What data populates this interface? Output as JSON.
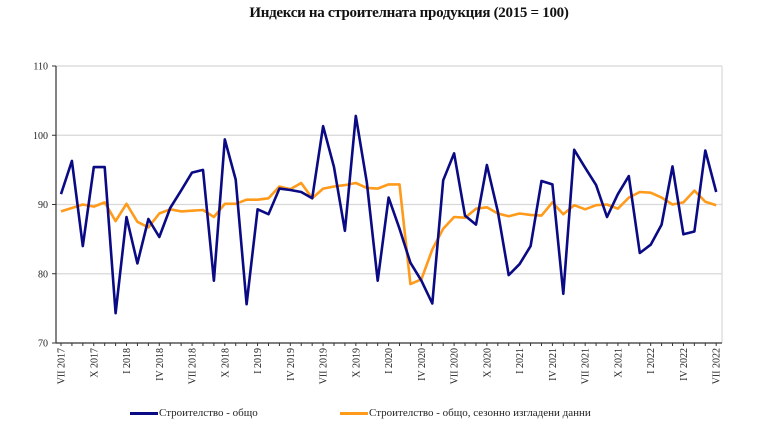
{
  "chart_data": {
    "type": "line",
    "title": "Индекси на строителната продукция (2015 = 100)",
    "xlabel": "",
    "ylabel": "",
    "ylim": [
      70,
      110
    ],
    "yticks": [
      70,
      80,
      90,
      100,
      110
    ],
    "grid": true,
    "legend_position": "bottom",
    "x_tick_labels": [
      "VII 2017",
      "X 2017",
      "I 2018",
      "IV 2018",
      "VII 2018",
      "X 2018",
      "I 2019",
      "IV 2019",
      "VII 2019",
      "X 2019",
      "I 2020",
      "IV 2020",
      "VII 2020",
      "X 2020",
      "I 2021",
      "IV 2021",
      "VII 2021",
      "X 2021",
      "I 2022",
      "IV 2022",
      "VII 2022"
    ],
    "series": [
      {
        "name": "Строителство - общо",
        "color": "#0a0a84",
        "values": [
          91.5,
          96.3,
          84,
          95.4,
          95.4,
          74.3,
          88.2,
          81.5,
          87.9,
          85.3,
          89.5,
          92,
          94.6,
          95,
          79,
          99.4,
          93.6,
          75.6,
          89.3,
          88.6,
          92.3,
          92.1,
          91.8,
          90.9,
          101.3,
          95.4,
          86.2,
          102.8,
          93.2,
          79,
          91,
          86.5,
          81.6,
          79,
          75.7,
          93.5,
          97.4,
          88.4,
          87.1,
          95.7,
          89,
          79.8,
          81.4,
          84,
          93.4,
          92.9,
          77.1,
          97.9,
          95.3,
          92.8,
          88.2,
          91.5,
          94.1,
          83,
          84.2,
          87.1,
          95.5,
          85.7,
          86.1,
          97.8,
          91.8
        ]
      },
      {
        "name": "Строителство - общо, сезонно изгладени данни",
        "color": "#ff9a1a",
        "values": [
          89,
          89.5,
          90,
          89.7,
          90.3,
          87.6,
          90.1,
          87.5,
          86.7,
          88.7,
          89.3,
          89,
          89.1,
          89.2,
          88.2,
          90.1,
          90.1,
          90.7,
          90.7,
          90.9,
          92.6,
          92.2,
          93.1,
          90.9,
          92.3,
          92.6,
          92.8,
          93.1,
          92.4,
          92.3,
          92.9,
          92.9,
          78.5,
          79.2,
          83.5,
          86.5,
          88.2,
          88.1,
          89.4,
          89.6,
          88.7,
          88.3,
          88.7,
          88.5,
          88.4,
          90.3,
          88.6,
          89.9,
          89.3,
          89.9,
          90,
          89.4,
          91,
          91.8,
          91.7,
          91,
          90,
          90.3,
          92,
          90.4,
          89.9
        ]
      }
    ]
  }
}
